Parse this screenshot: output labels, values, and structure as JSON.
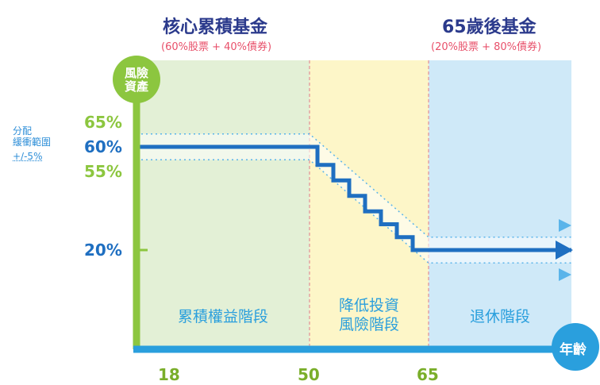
{
  "headings": {
    "core_title": "核心累積基金",
    "core_sub": "(60%股票 + 40%債券)",
    "age65_title": "65歲後基金",
    "age65_sub": "(20%股票 + 80%債券)"
  },
  "buffer_label": [
    "分配",
    "緩衝範圍",
    "+/-5%"
  ],
  "chart_data": {
    "type": "line",
    "title": "",
    "ylabel": "風險資產",
    "xlabel": "年齡",
    "x_ticks": [
      "18",
      "50",
      "65"
    ],
    "y_ticks": [
      "65%",
      "60%",
      "55%",
      "20%"
    ],
    "phases": [
      {
        "label": "累積權益階段",
        "from_age": 18,
        "to_age": 50,
        "color": "#e3f0d6"
      },
      {
        "label": "降低投資\n風險階段",
        "from_age": 50,
        "to_age": 65,
        "color": "#fdf6c8"
      },
      {
        "label": "退休階段",
        "from_age": 65,
        "to_age": null,
        "color": "#cfe9f8"
      }
    ],
    "series": [
      {
        "values": [
          {
            "age": 18,
            "allocation": 60
          },
          {
            "age": 50,
            "allocation": 60
          },
          {
            "age": 51,
            "allocation": 60
          },
          {
            "age": 51,
            "allocation": 53
          },
          {
            "age": 53,
            "allocation": 53
          },
          {
            "age": 53,
            "allocation": 47
          },
          {
            "age": 55,
            "allocation": 47
          },
          {
            "age": 55,
            "allocation": 41
          },
          {
            "age": 57,
            "allocation": 41
          },
          {
            "age": 57,
            "allocation": 35
          },
          {
            "age": 59,
            "allocation": 35
          },
          {
            "age": 59,
            "allocation": 30
          },
          {
            "age": 61,
            "allocation": 30
          },
          {
            "age": 61,
            "allocation": 25
          },
          {
            "age": 63,
            "allocation": 25
          },
          {
            "age": 63,
            "allocation": 20
          },
          {
            "age": 72,
            "allocation": 20
          }
        ]
      }
    ],
    "buffer": {
      "width": 5,
      "upper": [
        [
          18,
          65
        ],
        [
          50,
          65
        ],
        [
          65,
          25
        ],
        [
          72,
          25
        ]
      ],
      "lower": [
        [
          18,
          55
        ],
        [
          50,
          55
        ],
        [
          65,
          15
        ],
        [
          72,
          15
        ]
      ]
    },
    "colors": {
      "axis_y": "#8cc63f",
      "axis_x": "#2a9fdd",
      "line": "#1f6fc1",
      "buffer": "#5ab4ea"
    }
  }
}
